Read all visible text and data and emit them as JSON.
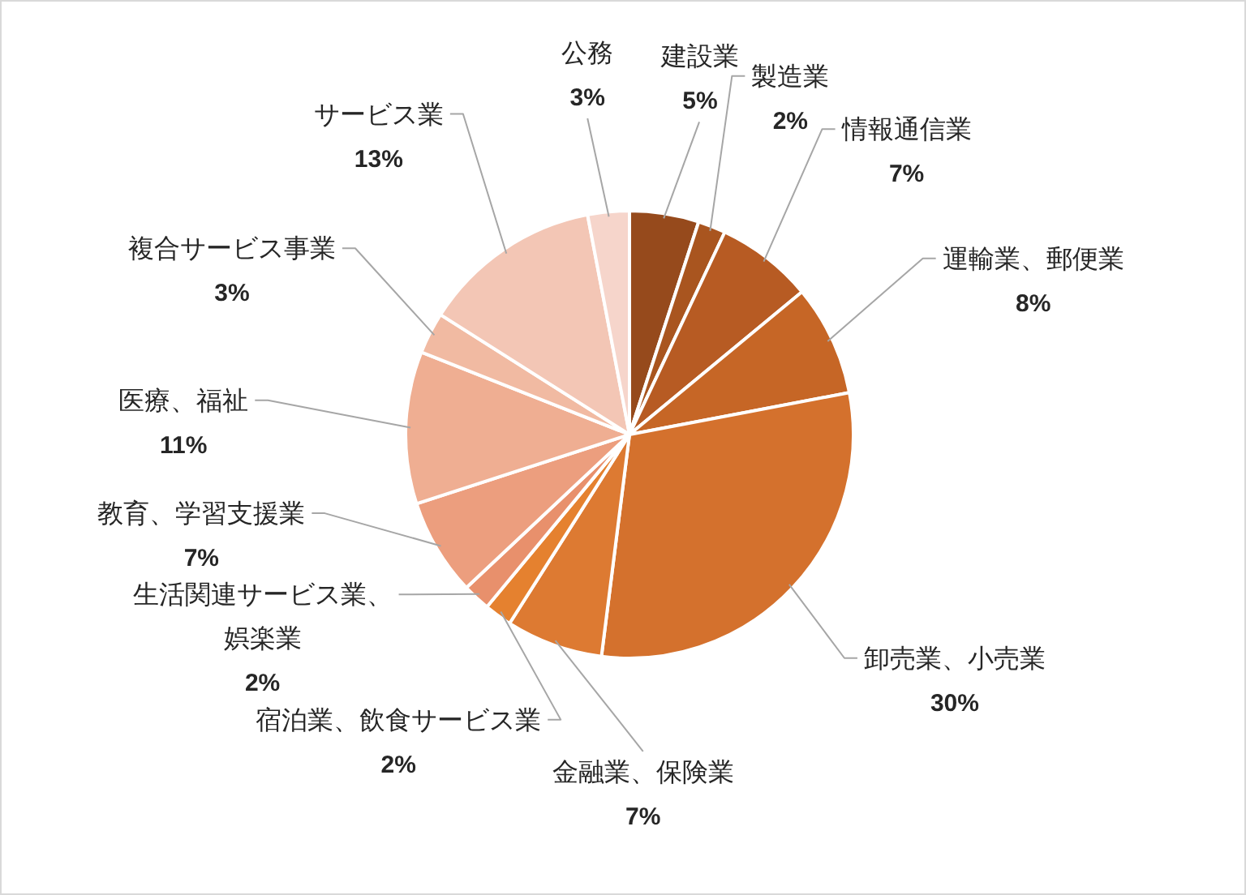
{
  "chart_data": {
    "type": "pie",
    "categories": [
      "建設業",
      "製造業",
      "情報通信業",
      "運輸業、郵便業",
      "卸売業、小売業",
      "金融業、保険業",
      "宿泊業、飲食サービス業",
      "生活関連サービス業、娯楽業",
      "教育、学習支援業",
      "医療、福祉",
      "複合サービス事業",
      "サービス業",
      "公務"
    ],
    "values": [
      5,
      2,
      7,
      8,
      30,
      7,
      2,
      2,
      7,
      11,
      3,
      13,
      3
    ],
    "value_labels": [
      "5%",
      "2%",
      "7%",
      "8%",
      "30%",
      "7%",
      "2%",
      "2%",
      "7%",
      "11%",
      "3%",
      "13%",
      "3%"
    ],
    "colors": [
      "#964a1c",
      "#a9551f",
      "#b75b23",
      "#c66626",
      "#d4712d",
      "#dd7a32",
      "#e5812f",
      "#e8906c",
      "#ec9e7e",
      "#efae92",
      "#f1baa2",
      "#f3c6b5",
      "#f6d5cb"
    ]
  }
}
